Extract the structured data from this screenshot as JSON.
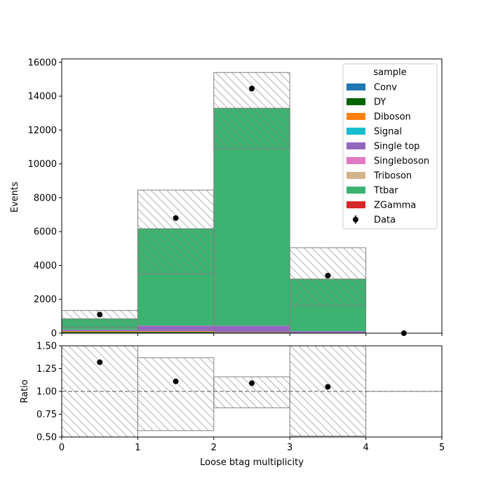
{
  "chart_data": [
    {
      "type": "bar",
      "stacked": true,
      "xlabel": "",
      "ylabel": "Events",
      "xlim": [
        0,
        5
      ],
      "ylim": [
        0,
        16200
      ],
      "x_ticks": [
        "0",
        "1",
        "2",
        "3",
        "4",
        "5"
      ],
      "y_ticks": [
        "0",
        "2000",
        "4000",
        "6000",
        "8000",
        "10000",
        "12000",
        "14000",
        "16000"
      ],
      "bin_edges": [
        0,
        1,
        2,
        3,
        4,
        5
      ],
      "legend": {
        "title": "sample",
        "position": "upper right",
        "entries": [
          "Conv",
          "DY",
          "Diboson",
          "Signal",
          "Single top",
          "Singleboson",
          "Triboson",
          "Ttbar",
          "ZGamma",
          "Data"
        ]
      },
      "series": [
        {
          "name": "Conv",
          "color": "#1f77b4",
          "values": [
            10,
            5,
            5,
            2,
            0
          ]
        },
        {
          "name": "DY",
          "color": "#006400",
          "values": [
            60,
            60,
            30,
            10,
            0
          ]
        },
        {
          "name": "Diboson",
          "color": "#ff7f0e",
          "values": [
            50,
            50,
            20,
            5,
            0
          ]
        },
        {
          "name": "Signal",
          "color": "#17becf",
          "values": [
            5,
            5,
            5,
            2,
            0
          ]
        },
        {
          "name": "Single top",
          "color": "#9467bd",
          "values": [
            80,
            320,
            380,
            90,
            0
          ]
        },
        {
          "name": "Singleboson",
          "color": "#e377c2",
          "values": [
            10,
            10,
            5,
            2,
            0
          ]
        },
        {
          "name": "Triboson",
          "color": "#d2b48c",
          "values": [
            1,
            1,
            1,
            0,
            0
          ]
        },
        {
          "name": "Ttbar",
          "color": "#3cb371",
          "values": [
            630,
            5720,
            12840,
            3090,
            0
          ]
        },
        {
          "name": "ZGamma",
          "color": "#d62728",
          "values": [
            2,
            2,
            2,
            1,
            0
          ]
        }
      ],
      "mc_total": [
        848,
        6175,
        13288,
        3202,
        0
      ],
      "uncertainty_band": {
        "low": [
          350,
          3500,
          10900,
          1620,
          0
        ],
        "high": [
          1340,
          8450,
          15400,
          5050,
          0
        ]
      },
      "data": {
        "name": "Data",
        "x": [
          0.5,
          1.5,
          2.5,
          3.5,
          4.5
        ],
        "y": [
          1100,
          6800,
          14450,
          3400,
          0
        ]
      }
    },
    {
      "type": "line",
      "xlabel": "Loose btag multiplicity",
      "ylabel": "Ratio",
      "xlim": [
        0,
        5
      ],
      "ylim": [
        0.5,
        1.5
      ],
      "x_ticks": [
        "0",
        "1",
        "2",
        "3",
        "4",
        "5"
      ],
      "y_ticks": [
        "0.50",
        "0.75",
        "1.00",
        "1.25",
        "1.50"
      ],
      "reference_line": 1.0,
      "uncertainty_band": {
        "low": [
          0.41,
          0.57,
          0.82,
          0.51,
          1.0
        ],
        "high": [
          1.58,
          1.37,
          1.16,
          1.58,
          1.0
        ]
      },
      "ratio": {
        "x": [
          0.5,
          1.5,
          2.5,
          3.5
        ],
        "y": [
          1.32,
          1.11,
          1.09,
          1.05
        ]
      }
    }
  ]
}
